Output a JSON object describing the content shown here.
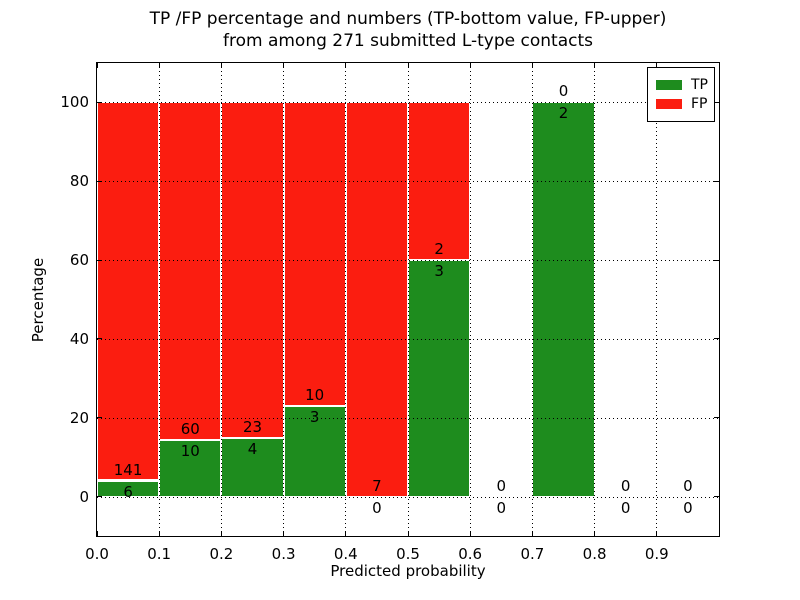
{
  "figure": {
    "title_line1": "TP /FP percentage and numbers (TP-bottom value, FP-upper)",
    "title_line2": "from among 271 submitted L-type contacts"
  },
  "chart_data": {
    "type": "bar",
    "stacked": true,
    "title": "TP /FP percentage and numbers (TP-bottom value, FP-upper) from among 271 submitted L-type contacts",
    "total_contacts": 271,
    "xlabel": "Predicted probability",
    "ylabel": "Percentage",
    "xlim": [
      0.0,
      1.0
    ],
    "ylim": [
      -10,
      110
    ],
    "bin_width": 0.1,
    "bin_starts": [
      0.0,
      0.1,
      0.2,
      0.3,
      0.4,
      0.5,
      0.6,
      0.7,
      0.8,
      0.9
    ],
    "x_tick_labels": [
      "0.0",
      "0.1",
      "0.2",
      "0.3",
      "0.4",
      "0.5",
      "0.6",
      "0.7",
      "0.8",
      "0.9"
    ],
    "y_ticks": [
      0,
      20,
      40,
      60,
      80,
      100
    ],
    "y_tick_labels": [
      "0",
      "20",
      "40",
      "60",
      "80",
      "100"
    ],
    "grid": true,
    "legend_position": "upper right",
    "series": [
      {
        "name": "TP",
        "color": "#1e8c1e",
        "counts": [
          6,
          10,
          4,
          3,
          0,
          3,
          0,
          2,
          0,
          0
        ],
        "percent": [
          4.08,
          14.29,
          14.81,
          23.08,
          0,
          60,
          0,
          100,
          0,
          0
        ],
        "label_position": "below boundary (bottom value)"
      },
      {
        "name": "FP",
        "color": "#fb1d10",
        "counts": [
          141,
          60,
          23,
          10,
          7,
          2,
          0,
          0,
          0,
          0
        ],
        "percent": [
          95.92,
          85.71,
          85.19,
          76.92,
          100,
          40,
          0,
          0,
          0,
          0
        ],
        "label_position": "above boundary (upper value)"
      }
    ]
  }
}
